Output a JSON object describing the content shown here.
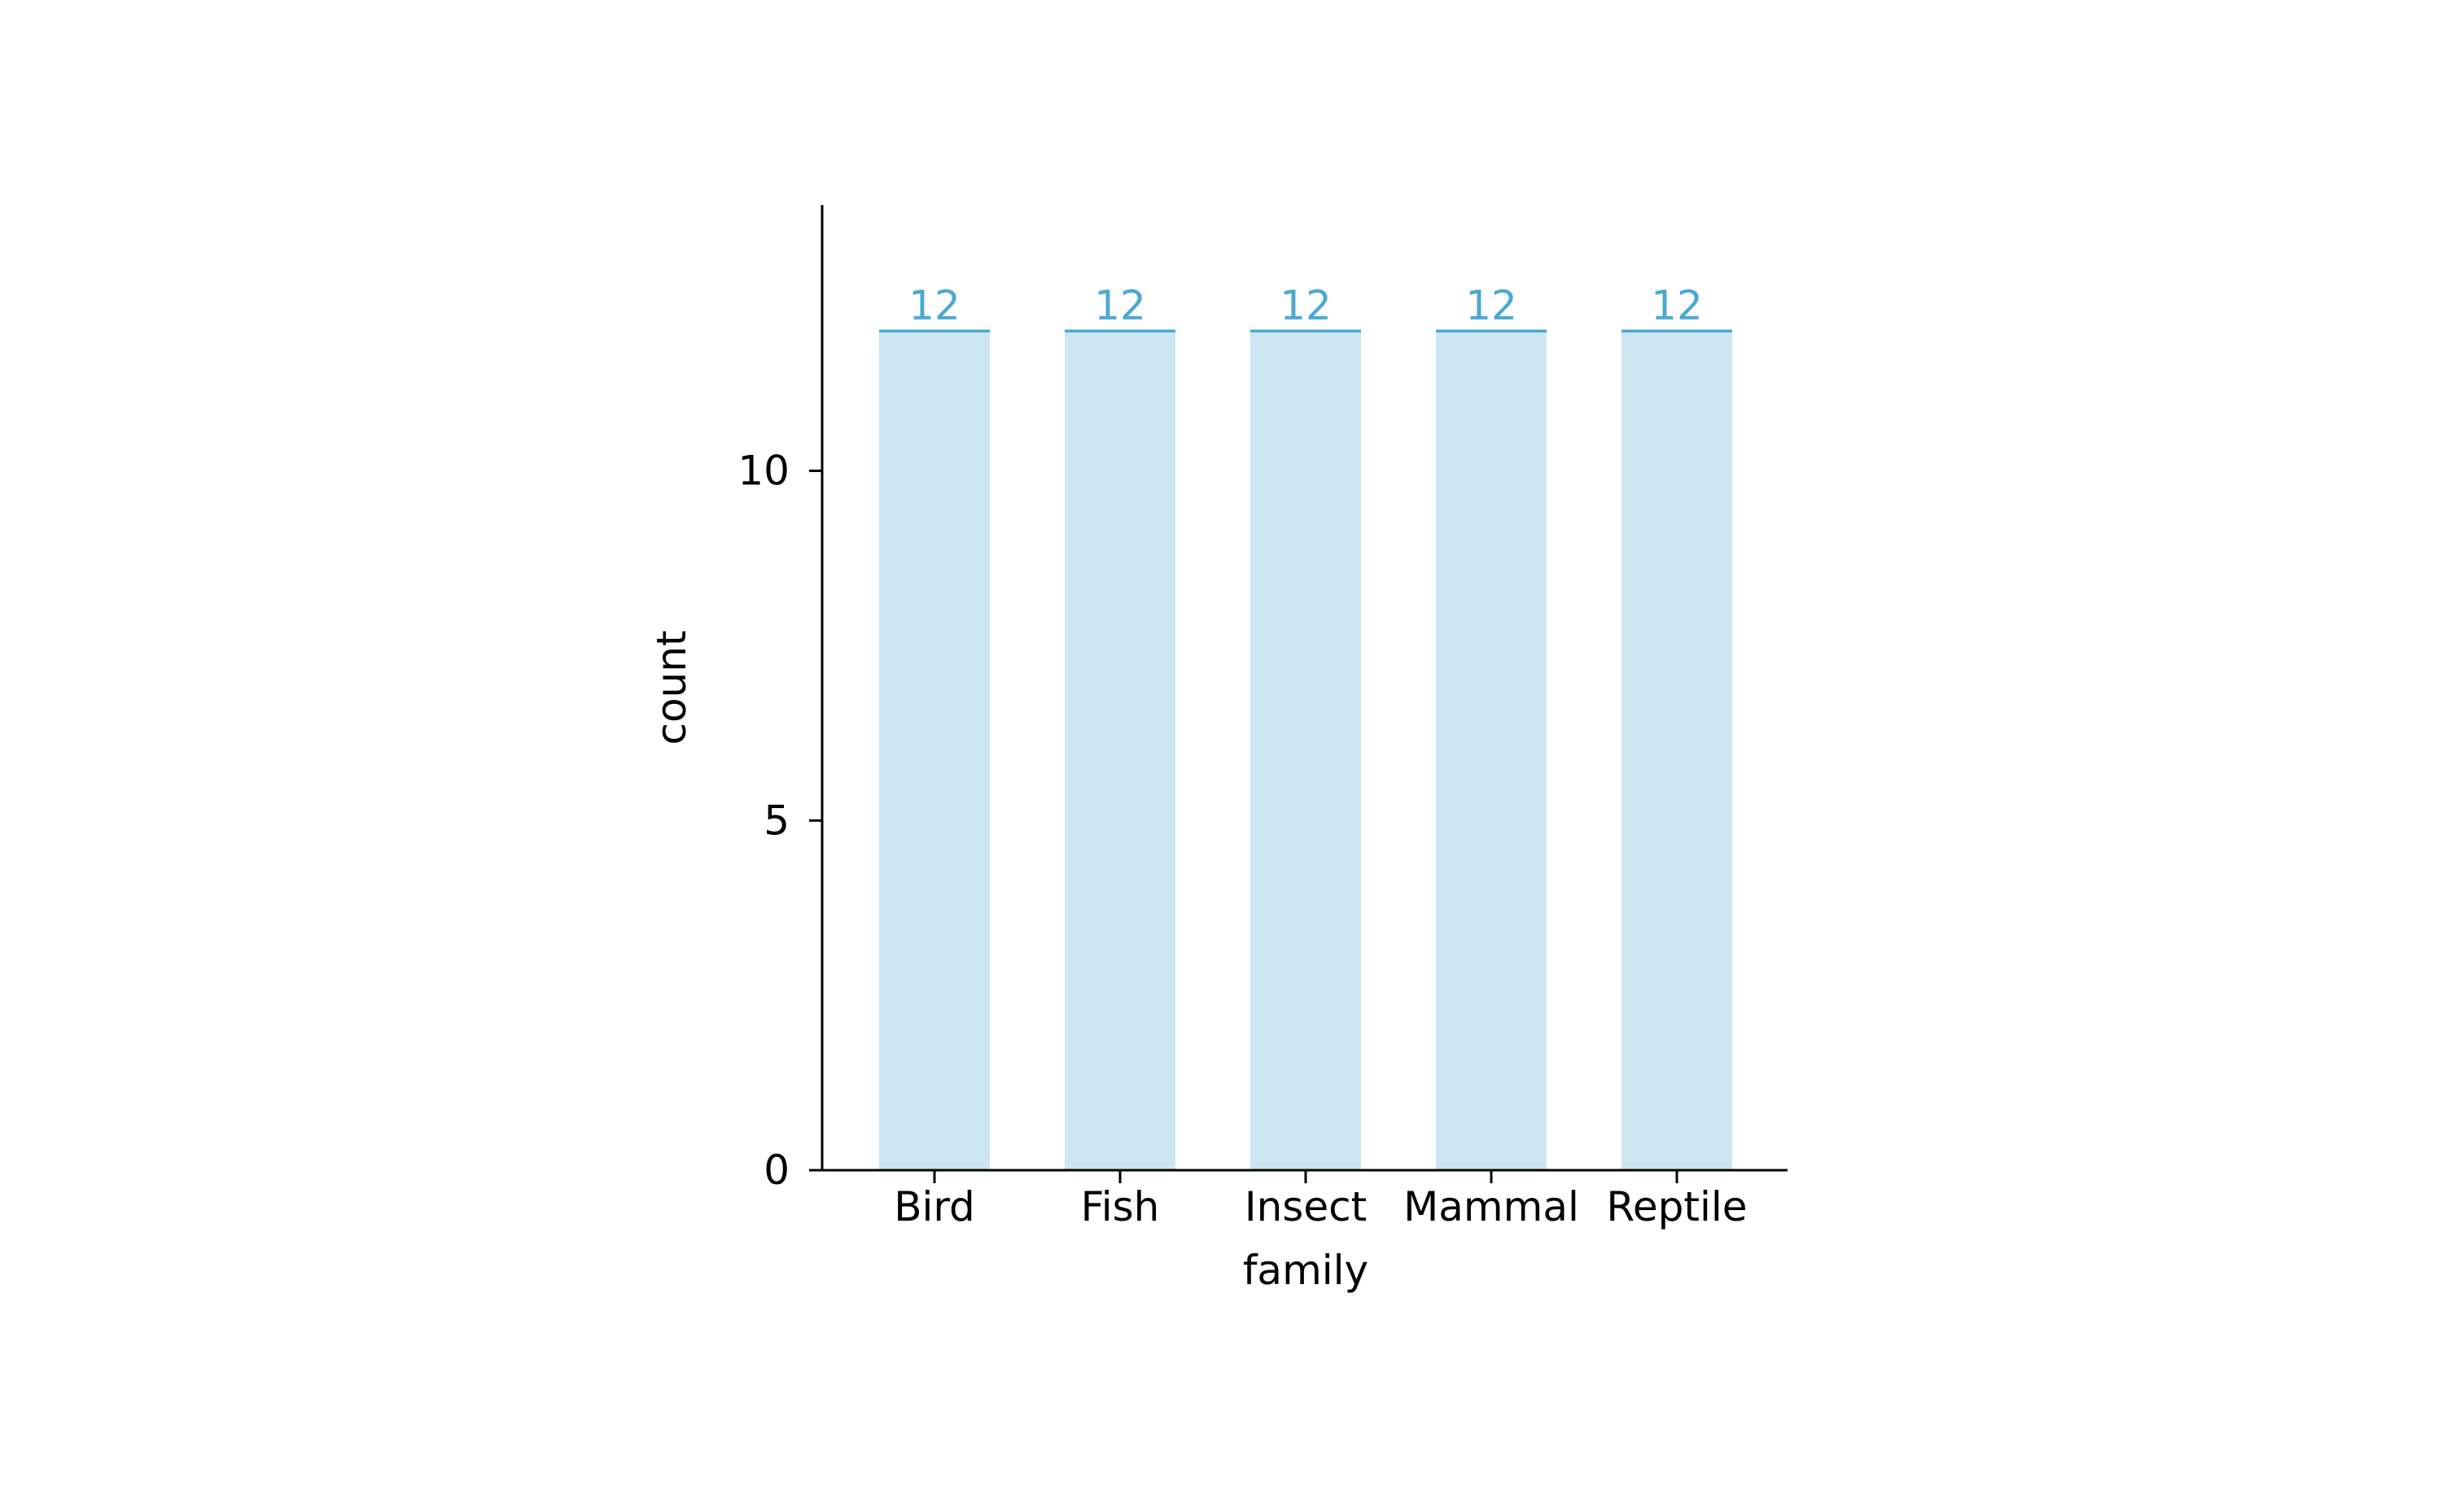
{
  "chart_data": {
    "type": "bar",
    "title": "",
    "xlabel": "family",
    "ylabel": "count",
    "categories": [
      "Bird",
      "Fish",
      "Insect",
      "Mammal",
      "Reptile"
    ],
    "values": [
      12,
      12,
      12,
      12,
      12
    ],
    "ylim": [
      0,
      13.8
    ],
    "yticks": [
      0,
      5,
      10
    ],
    "ytick_labels": [
      "0",
      "5",
      "10"
    ],
    "grid": false,
    "legend": "none",
    "colors": {
      "bar_fill": "#cce6f2",
      "bar_top_line": "#4ba8d2",
      "value_label": "#4ba8d2",
      "axis": "#000000",
      "text": "#000000"
    }
  }
}
